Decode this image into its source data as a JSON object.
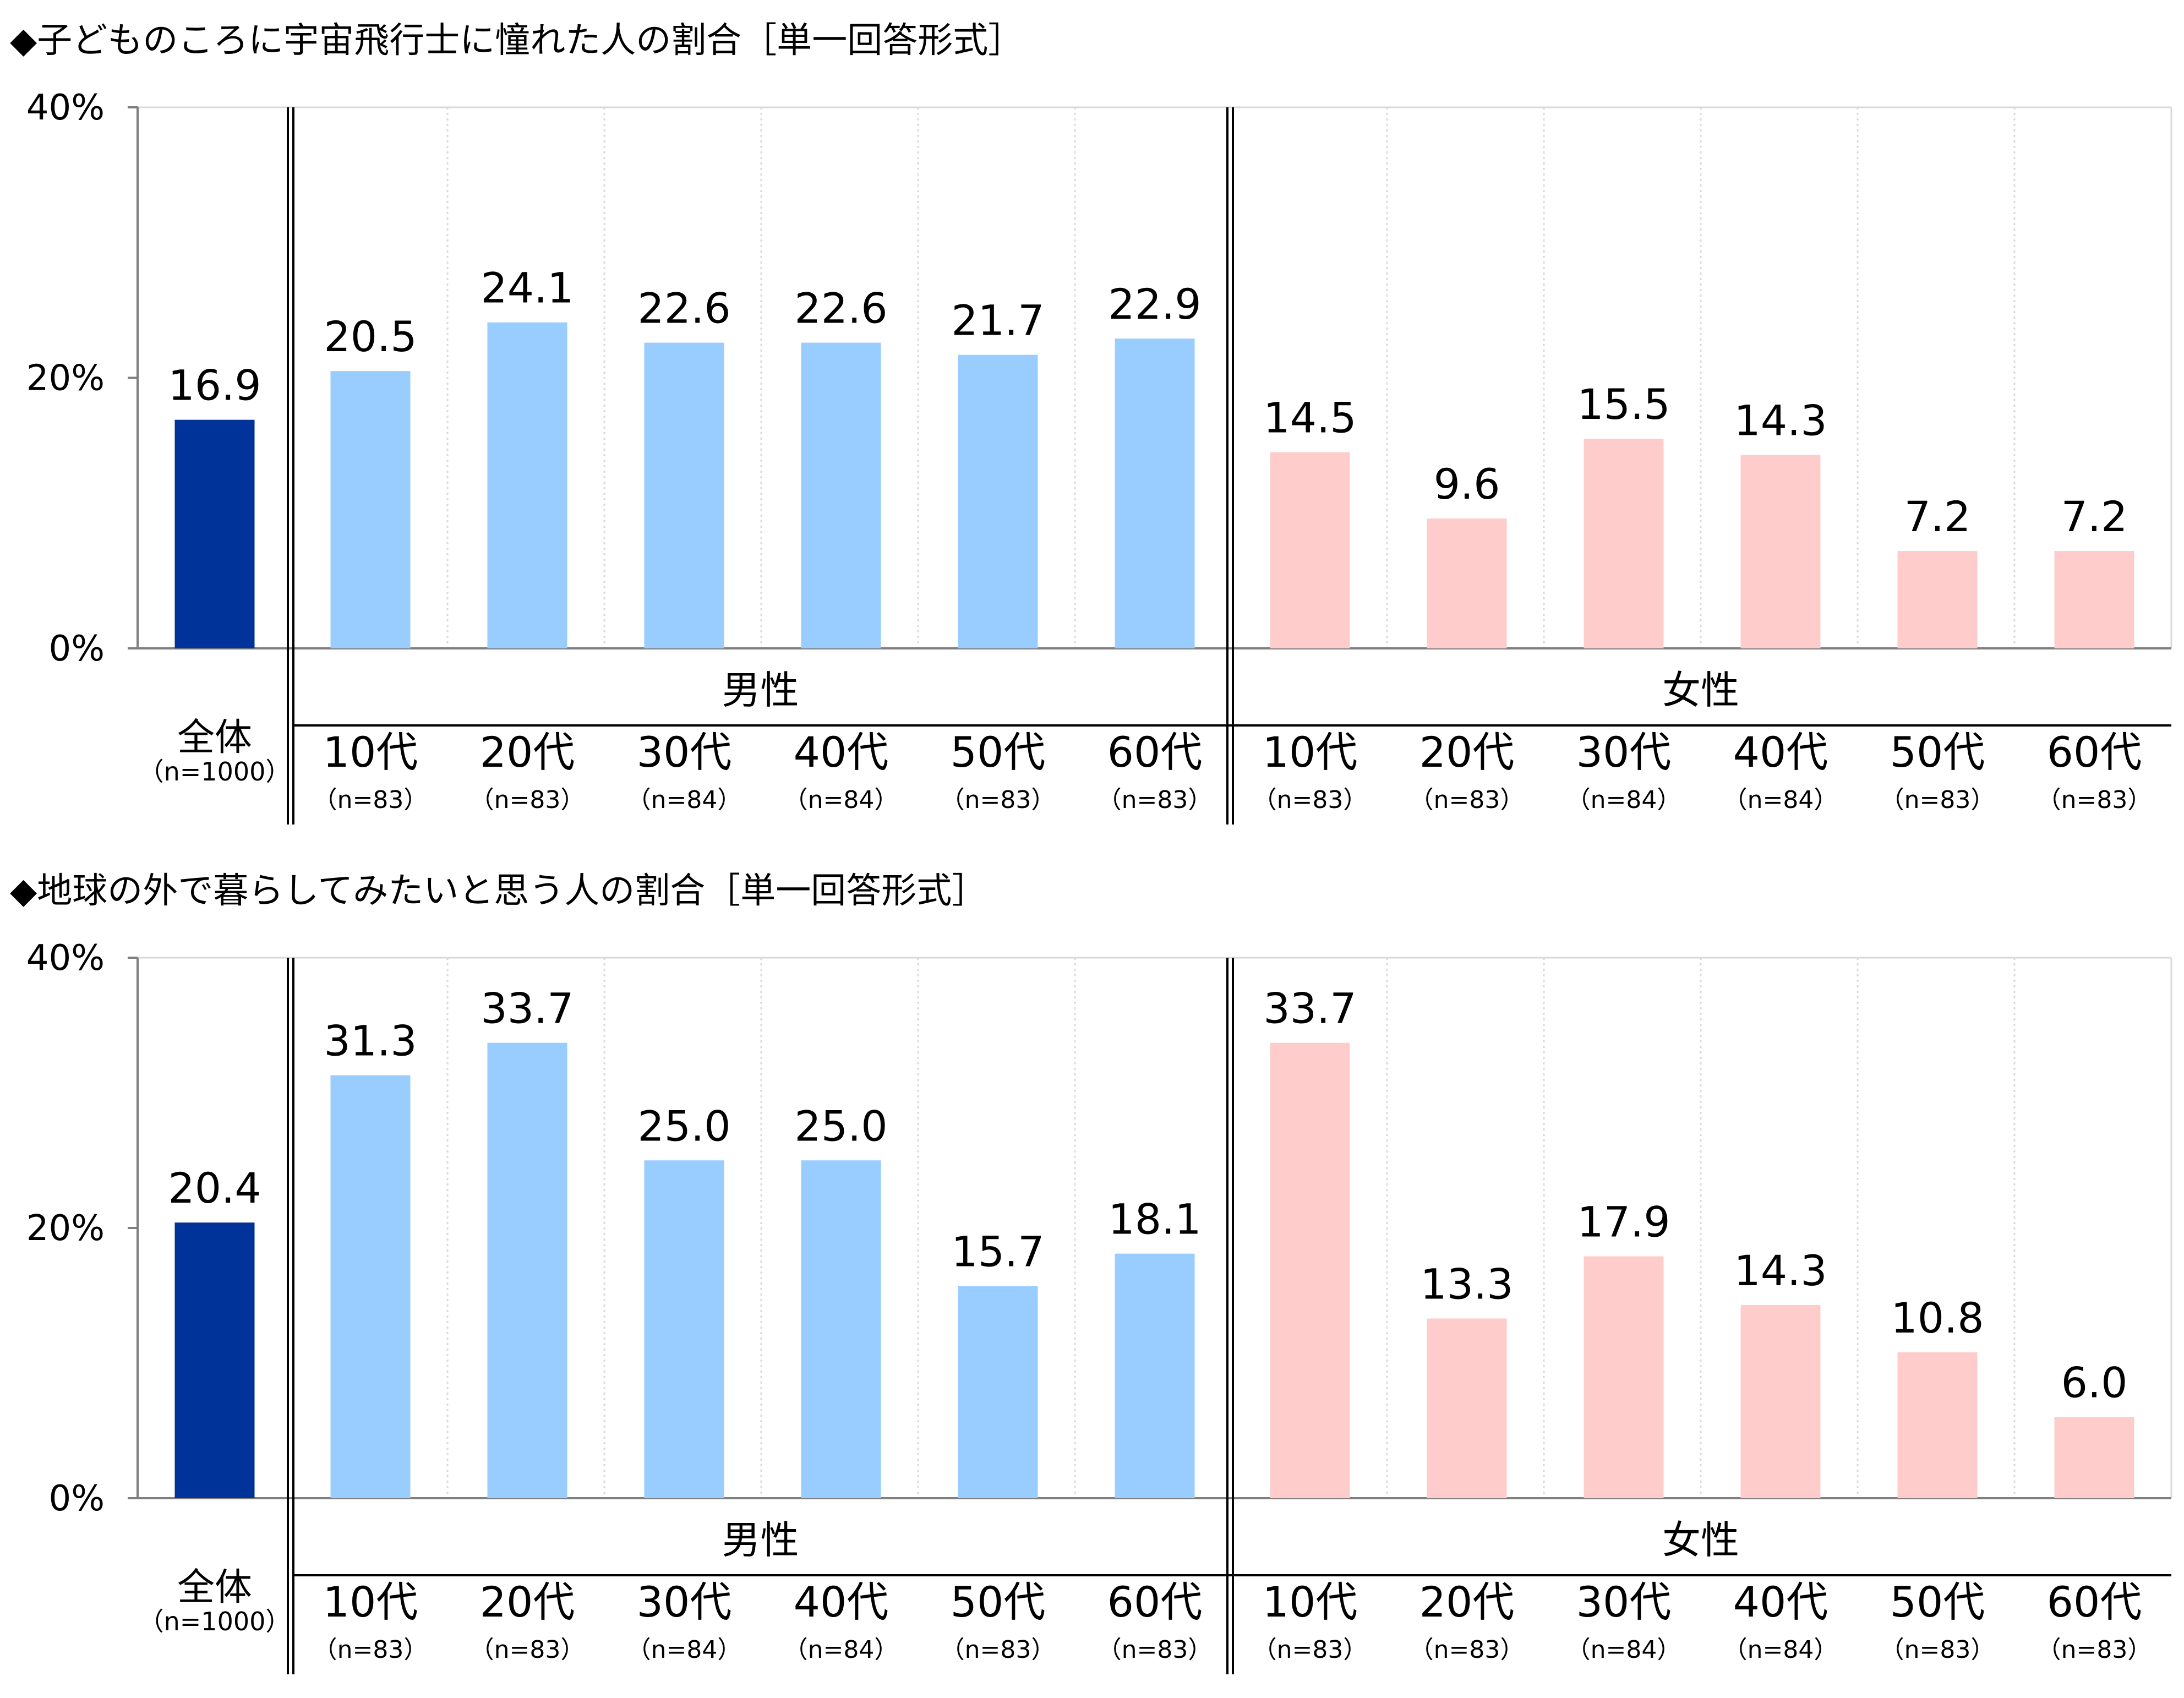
{
  "colors": {
    "total": "#003399",
    "male": "#99ccff",
    "female": "#ffcccc",
    "axis": "#7f7f7f",
    "grid": "#d9d9d9"
  },
  "chart_data": [
    {
      "type": "bar",
      "title": "◆子どものころに宇宙飛行士に憧れた人の割合［単一回答形式］",
      "yticks": [
        "0%",
        "20%",
        "40%"
      ],
      "ylim": [
        0,
        40
      ],
      "categories": [
        "10代",
        "20代",
        "30代",
        "40代",
        "50代",
        "60代"
      ],
      "n_labels": [
        "（n=83）",
        "（n=83）",
        "（n=84）",
        "（n=84）",
        "（n=83）",
        "（n=83）"
      ],
      "total": {
        "label": "全体",
        "n": "（n=1000）",
        "value": 16.9
      },
      "series": [
        {
          "name": "男性",
          "values": [
            20.5,
            24.1,
            22.6,
            22.6,
            21.7,
            22.9
          ]
        },
        {
          "name": "女性",
          "values": [
            14.5,
            9.6,
            15.5,
            14.3,
            7.2,
            7.2
          ]
        }
      ]
    },
    {
      "type": "bar",
      "title": "◆地球の外で暮らしてみたいと思う人の割合［単一回答形式］",
      "yticks": [
        "0%",
        "20%",
        "40%"
      ],
      "ylim": [
        0,
        40
      ],
      "categories": [
        "10代",
        "20代",
        "30代",
        "40代",
        "50代",
        "60代"
      ],
      "n_labels": [
        "（n=83）",
        "（n=83）",
        "（n=84）",
        "（n=84）",
        "（n=83）",
        "（n=83）"
      ],
      "total": {
        "label": "全体",
        "n": "（n=1000）",
        "value": 20.4
      },
      "series": [
        {
          "name": "男性",
          "values": [
            31.3,
            33.7,
            25.0,
            25.0,
            15.7,
            18.1
          ]
        },
        {
          "name": "女性",
          "values": [
            33.7,
            13.3,
            17.9,
            14.3,
            10.8,
            6.0
          ]
        }
      ]
    }
  ]
}
